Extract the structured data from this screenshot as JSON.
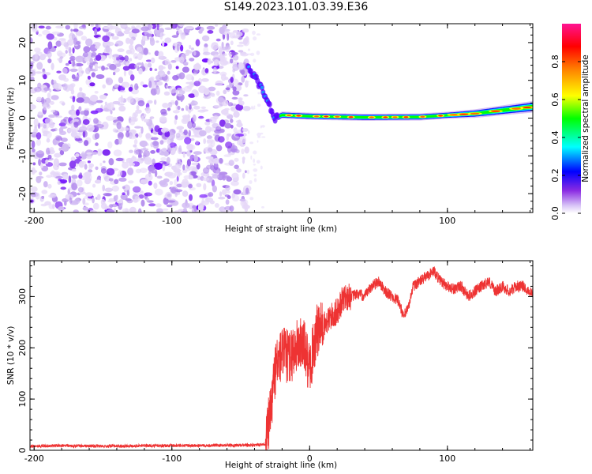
{
  "title": "S149.2023.101.03.39.E36",
  "chart_data": [
    {
      "type": "heatmap",
      "title": "S149.2023.101.03.39.E36",
      "xlabel": "Height of straight line (km)",
      "ylabel": "Frequency (Hz)",
      "xlim": [
        -203,
        162
      ],
      "ylim": [
        -25,
        25
      ],
      "xticks": [
        -200,
        -100,
        0,
        100
      ],
      "yticks": [
        -20,
        -10,
        0,
        10,
        20
      ],
      "signal_ridge": {
        "x": [
          -45,
          -35,
          -30,
          -25,
          -20,
          0,
          40,
          80,
          120,
          162
        ],
        "freq_hz": [
          14,
          8,
          4,
          0,
          0.8,
          0.5,
          0.2,
          0.3,
          1.2,
          3.0
        ]
      },
      "colorbar": {
        "label": "Normalized spectral amplitude",
        "range": [
          0,
          1
        ],
        "ticks": [
          "0.0",
          "0.2",
          "0.4",
          "0.6",
          "0.8"
        ],
        "colors": [
          "#ffffff",
          "#b98cf0",
          "#6b00ff",
          "#0000ff",
          "#00ffff",
          "#00ff00",
          "#ffff00",
          "#ff8000",
          "#ff0000",
          "#ff00aa"
        ]
      },
      "grid": false
    },
    {
      "type": "line",
      "xlabel": "Height of straight line (km)",
      "ylabel": "SNR (10 * v/v)",
      "xlim": [
        -203,
        162
      ],
      "ylim": [
        0,
        370
      ],
      "xticks": [
        -200,
        -100,
        0,
        100
      ],
      "yticks": [
        0,
        100,
        200,
        300
      ],
      "series": [
        {
          "name": "SNR",
          "color": "#ee3333",
          "x": [
            -203,
            -180,
            -150,
            -120,
            -90,
            -60,
            -40,
            -32,
            -28,
            -25,
            -20,
            -15,
            -10,
            -5,
            0,
            5,
            10,
            15,
            20,
            25,
            30,
            35,
            40,
            45,
            50,
            55,
            60,
            65,
            68,
            72,
            75,
            80,
            85,
            90,
            95,
            100,
            105,
            110,
            115,
            120,
            125,
            130,
            135,
            140,
            145,
            150,
            155,
            162
          ],
          "y": [
            8,
            9,
            8,
            9,
            9,
            10,
            10,
            12,
            80,
            160,
            190,
            180,
            200,
            210,
            160,
            230,
            240,
            260,
            270,
            300,
            300,
            305,
            300,
            320,
            330,
            310,
            300,
            290,
            260,
            280,
            320,
            330,
            340,
            350,
            330,
            320,
            315,
            320,
            300,
            310,
            320,
            330,
            310,
            320,
            310,
            320,
            320,
            305
          ]
        }
      ],
      "grid": false
    }
  ]
}
